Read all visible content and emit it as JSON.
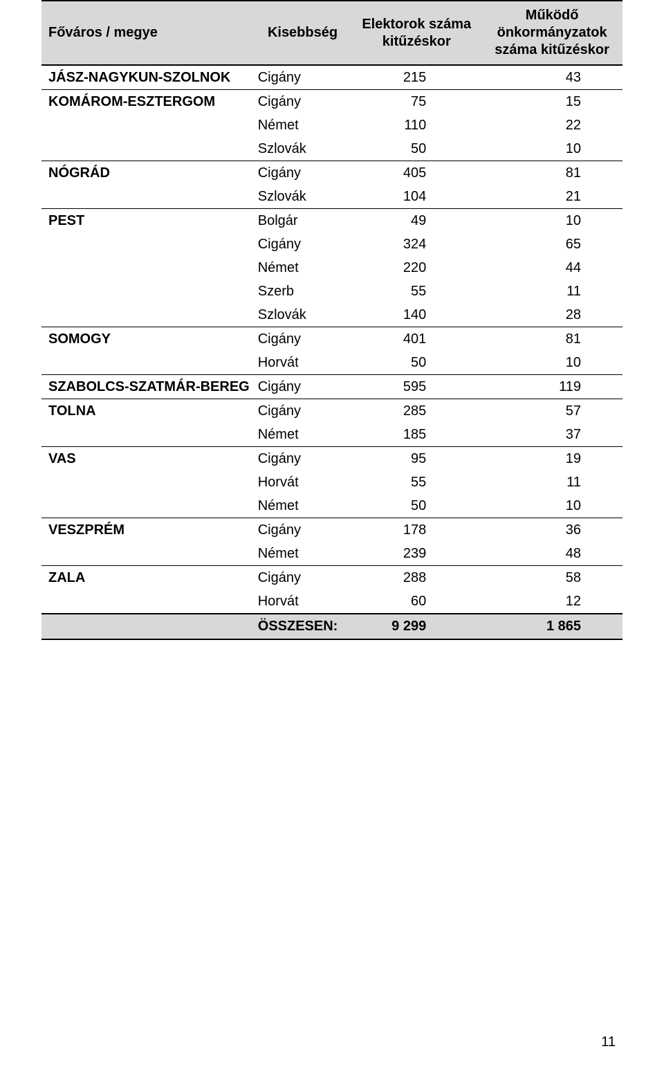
{
  "table": {
    "header": {
      "col1": "Főváros / megye",
      "col2": "Kisebbség",
      "col3": "Elektorok száma kitűzéskor",
      "col4": "Működő önkormányzatok száma kitűzéskor"
    },
    "colors": {
      "header_bg": "#d8d8d8",
      "footer_bg": "#d8d8d8",
      "text": "#000000",
      "border": "#000000",
      "page_bg": "#ffffff"
    },
    "typography": {
      "font_family": "Arial, Helvetica, sans-serif",
      "font_size_pt": 15,
      "header_weight": "bold",
      "region_weight": "bold"
    },
    "rows": [
      {
        "region": "JÁSZ-NAGYKUN-SZOLNOK",
        "minority": "Cigány",
        "electors": "215",
        "govts": "43",
        "sep": true
      },
      {
        "region": "KOMÁROM-ESZTERGOM",
        "minority": "Cigány",
        "electors": "75",
        "govts": "15",
        "sep": true
      },
      {
        "region": "",
        "minority": "Német",
        "electors": "110",
        "govts": "22",
        "sep": false
      },
      {
        "region": "",
        "minority": "Szlovák",
        "electors": "50",
        "govts": "10",
        "sep": false
      },
      {
        "region": "NÓGRÁD",
        "minority": "Cigány",
        "electors": "405",
        "govts": "81",
        "sep": true
      },
      {
        "region": "",
        "minority": "Szlovák",
        "electors": "104",
        "govts": "21",
        "sep": false
      },
      {
        "region": "PEST",
        "minority": "Bolgár",
        "electors": "49",
        "govts": "10",
        "sep": true
      },
      {
        "region": "",
        "minority": "Cigány",
        "electors": "324",
        "govts": "65",
        "sep": false
      },
      {
        "region": "",
        "minority": "Német",
        "electors": "220",
        "govts": "44",
        "sep": false
      },
      {
        "region": "",
        "minority": "Szerb",
        "electors": "55",
        "govts": "11",
        "sep": false
      },
      {
        "region": "",
        "minority": "Szlovák",
        "electors": "140",
        "govts": "28",
        "sep": false
      },
      {
        "region": "SOMOGY",
        "minority": "Cigány",
        "electors": "401",
        "govts": "81",
        "sep": true
      },
      {
        "region": "",
        "minority": "Horvát",
        "electors": "50",
        "govts": "10",
        "sep": false
      },
      {
        "region": "SZABOLCS-SZATMÁR-BEREG",
        "minority": "Cigány",
        "electors": "595",
        "govts": "119",
        "sep": true
      },
      {
        "region": "TOLNA",
        "minority": "Cigány",
        "electors": "285",
        "govts": "57",
        "sep": true
      },
      {
        "region": "",
        "minority": "Német",
        "electors": "185",
        "govts": "37",
        "sep": false
      },
      {
        "region": "VAS",
        "minority": "Cigány",
        "electors": "95",
        "govts": "19",
        "sep": true
      },
      {
        "region": "",
        "minority": "Horvát",
        "electors": "55",
        "govts": "11",
        "sep": false
      },
      {
        "region": "",
        "minority": "Német",
        "electors": "50",
        "govts": "10",
        "sep": false
      },
      {
        "region": "VESZPRÉM",
        "minority": "Cigány",
        "electors": "178",
        "govts": "36",
        "sep": true
      },
      {
        "region": "",
        "minority": "Német",
        "electors": "239",
        "govts": "48",
        "sep": false
      },
      {
        "region": "ZALA",
        "minority": "Cigány",
        "electors": "288",
        "govts": "58",
        "sep": true
      },
      {
        "region": "",
        "minority": "Horvát",
        "electors": "60",
        "govts": "12",
        "sep": false
      }
    ],
    "footer": {
      "label": "ÖSSZESEN:",
      "electors_total": "9 299",
      "govts_total": "1 865"
    }
  },
  "page_number": "11"
}
